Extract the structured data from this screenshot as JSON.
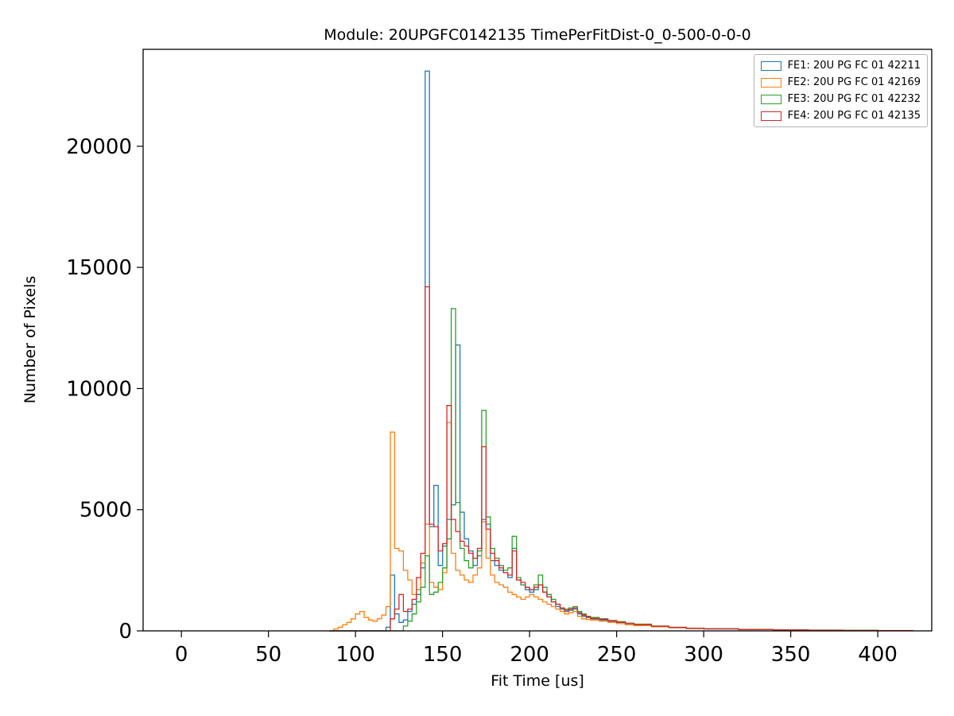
{
  "chart_data": {
    "type": "histogram-step",
    "title": "Module: 20UPGFC0142135 TimePerFitDist-0_0-500-0-0-0",
    "xlabel": "Fit Time [us]",
    "ylabel": "Number of Pixels",
    "xlim": [
      -22,
      431
    ],
    "ylim": [
      0,
      24000
    ],
    "xticks": [
      0,
      50,
      100,
      150,
      200,
      250,
      300,
      350,
      400
    ],
    "yticks": [
      0,
      5000,
      10000,
      15000,
      20000
    ],
    "grid": false,
    "legend_position": "upper right",
    "bin_left_edges": [
      85,
      87.5,
      90,
      92.5,
      95,
      97.5,
      100,
      102.5,
      105,
      107.5,
      110,
      112.5,
      115,
      117.5,
      120,
      122.5,
      125,
      127.5,
      130,
      132.5,
      135,
      137.5,
      140,
      142.5,
      145,
      147.5,
      150,
      152.5,
      155,
      157.5,
      160,
      162.5,
      165,
      167.5,
      170,
      172.5,
      175,
      177.5,
      180,
      182.5,
      185,
      187.5,
      190,
      192.5,
      195,
      197.5,
      200,
      202.5,
      205,
      207.5,
      210,
      212.5,
      215,
      217.5,
      220,
      222.5,
      225,
      227.5,
      230,
      232.5,
      235,
      240,
      245,
      250,
      255,
      260,
      270,
      280,
      290,
      300,
      320,
      340,
      360,
      380,
      400,
      420
    ],
    "series": [
      {
        "name": "FE1: 20U PG FC 01 42211",
        "color": "#1f77b4",
        "counts": [
          0,
          0,
          0,
          0,
          0,
          0,
          0,
          0,
          0,
          0,
          0,
          0,
          0,
          150,
          2300,
          700,
          350,
          450,
          800,
          1100,
          1500,
          2600,
          23100,
          4300,
          6000,
          2700,
          3500,
          4600,
          5200,
          11800,
          4900,
          3800,
          3300,
          2700,
          3100,
          4600,
          4400,
          2900,
          2700,
          2500,
          2400,
          2200,
          3400,
          2100,
          1900,
          1700,
          1600,
          1700,
          1900,
          1600,
          1400,
          1200,
          1000,
          900,
          800,
          850,
          900,
          700,
          600,
          550,
          500,
          450,
          400,
          350,
          300,
          250,
          180,
          130,
          100,
          80,
          55,
          40,
          30,
          20,
          10,
          0
        ]
      },
      {
        "name": "FE2: 20U PG FC 01 42169",
        "color": "#ff7f0e",
        "counts": [
          0,
          80,
          150,
          250,
          350,
          500,
          700,
          800,
          550,
          450,
          400,
          500,
          650,
          1000,
          8200,
          3400,
          3300,
          2500,
          2100,
          1500,
          1700,
          2800,
          4400,
          2000,
          1800,
          1700,
          2400,
          8600,
          3200,
          2500,
          2300,
          2100,
          2000,
          2300,
          2600,
          4500,
          3000,
          2300,
          2000,
          1900,
          1800,
          1600,
          1500,
          1400,
          1300,
          1400,
          1500,
          1400,
          1300,
          1200,
          1100,
          1000,
          900,
          800,
          700,
          750,
          800,
          600,
          500,
          470,
          450,
          400,
          350,
          300,
          250,
          220,
          170,
          130,
          100,
          85,
          60,
          45,
          30,
          20,
          15,
          0
        ]
      },
      {
        "name": "FE3: 20U PG FC 01 42232",
        "color": "#2ca02c",
        "counts": [
          0,
          0,
          0,
          0,
          0,
          0,
          0,
          0,
          0,
          0,
          0,
          0,
          0,
          0,
          0,
          0,
          0,
          200,
          400,
          700,
          1200,
          1800,
          3100,
          1500,
          1600,
          2000,
          2600,
          3800,
          13300,
          5300,
          3400,
          2900,
          2600,
          3000,
          3300,
          9100,
          4700,
          3400,
          3000,
          2700,
          2500,
          2600,
          3900,
          2200,
          1900,
          1800,
          1700,
          1900,
          2300,
          1800,
          1500,
          1300,
          1100,
          950,
          900,
          950,
          1000,
          800,
          700,
          600,
          550,
          500,
          430,
          380,
          320,
          280,
          200,
          150,
          110,
          90,
          60,
          45,
          32,
          22,
          12,
          0
        ]
      },
      {
        "name": "FE4: 20U PG FC 01 42135",
        "color": "#d62728",
        "counts": [
          0,
          0,
          0,
          0,
          0,
          0,
          0,
          0,
          0,
          0,
          0,
          0,
          0,
          0,
          500,
          900,
          1500,
          800,
          900,
          1300,
          2200,
          3200,
          14200,
          4400,
          4300,
          3300,
          3600,
          9300,
          4600,
          4100,
          3700,
          3500,
          3200,
          3000,
          3400,
          7600,
          4200,
          3200,
          2900,
          2600,
          2400,
          2300,
          3300,
          2100,
          2000,
          1800,
          1700,
          1800,
          1900,
          1600,
          1400,
          1200,
          1100,
          950,
          850,
          900,
          950,
          750,
          650,
          580,
          520,
          480,
          420,
          360,
          310,
          260,
          190,
          140,
          105,
          85,
          55,
          40,
          28,
          18,
          10,
          0
        ]
      }
    ]
  }
}
